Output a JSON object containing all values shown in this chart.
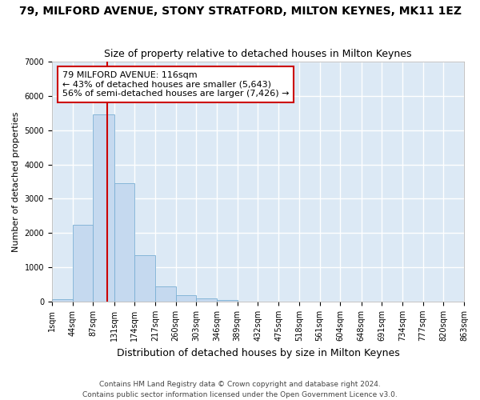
{
  "title": "79, MILFORD AVENUE, STONY STRATFORD, MILTON KEYNES, MK11 1EZ",
  "subtitle": "Size of property relative to detached houses in Milton Keynes",
  "xlabel": "Distribution of detached houses by size in Milton Keynes",
  "ylabel": "Number of detached properties",
  "footer_line1": "Contains HM Land Registry data © Crown copyright and database right 2024.",
  "footer_line2": "Contains public sector information licensed under the Open Government Licence v3.0.",
  "annotation_line1": "79 MILFORD AVENUE: 116sqm",
  "annotation_line2": "← 43% of detached houses are smaller (5,643)",
  "annotation_line3": "56% of semi-detached houses are larger (7,426) →",
  "property_size": 116,
  "bin_edges": [
    1,
    44,
    87,
    131,
    174,
    217,
    260,
    303,
    346,
    389,
    432,
    475,
    518,
    561,
    604,
    648,
    691,
    734,
    777,
    820,
    863
  ],
  "bar_heights": [
    60,
    2250,
    5450,
    3450,
    1350,
    450,
    175,
    100,
    50,
    5,
    2,
    0,
    0,
    0,
    0,
    0,
    0,
    0,
    0,
    0
  ],
  "bar_color": "#c5d9ef",
  "bar_edge_color": "#7aafd4",
  "vline_color": "#cc0000",
  "annotation_box_color": "#ffffff",
  "annotation_box_edge": "#cc0000",
  "plot_bg_color": "#dce9f5",
  "fig_bg_color": "#ffffff",
  "grid_color": "#ffffff",
  "ylim": [
    0,
    7000
  ],
  "yticks": [
    0,
    1000,
    2000,
    3000,
    4000,
    5000,
    6000,
    7000
  ],
  "title_fontsize": 10,
  "subtitle_fontsize": 9,
  "ylabel_fontsize": 8,
  "xlabel_fontsize": 9,
  "tick_fontsize": 7,
  "footer_fontsize": 6.5
}
